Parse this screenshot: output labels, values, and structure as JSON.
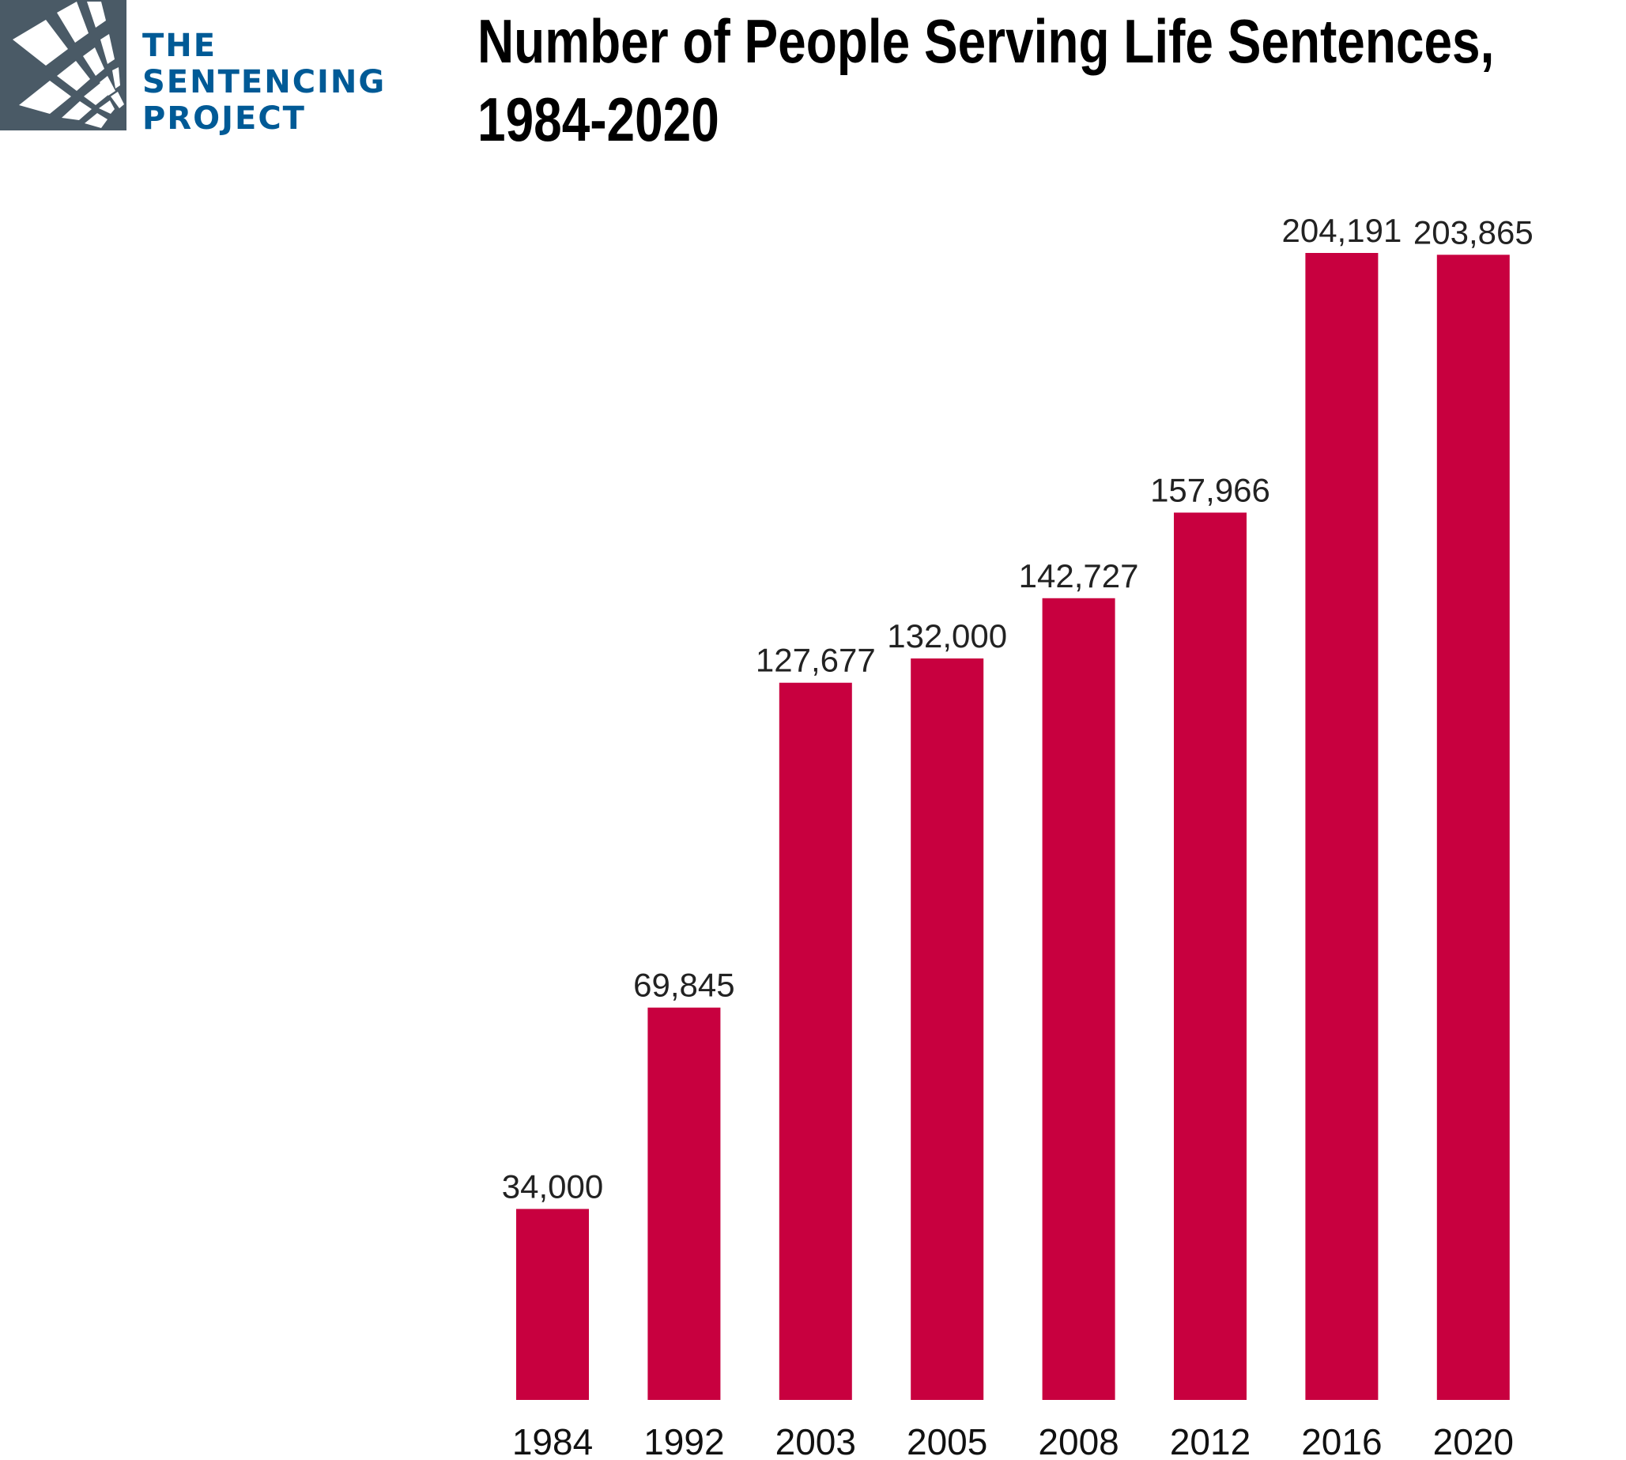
{
  "logo": {
    "lines": [
      "THE",
      "SENTENCING",
      "PROJECT"
    ],
    "text_color": "#005a96",
    "mark_color": "#4a5a66"
  },
  "chart_data": {
    "type": "bar",
    "title_lines": [
      "Number of People Serving Life Sentences,",
      "1984-2020"
    ],
    "categories": [
      "1984",
      "1992",
      "2003",
      "2005",
      "2008",
      "2012",
      "2016",
      "2020"
    ],
    "values": [
      34000,
      69845,
      127677,
      132000,
      142727,
      157966,
      204191,
      203865
    ],
    "data_labels": [
      "34,000",
      "69,845",
      "127,677",
      "132,000",
      "142,727",
      "157,966",
      "204,191",
      "203,865"
    ],
    "xlabel": "",
    "ylabel": "",
    "ylim": [
      0,
      204191
    ],
    "grid": false,
    "legend": "none",
    "bar_color": "#c8003f"
  }
}
